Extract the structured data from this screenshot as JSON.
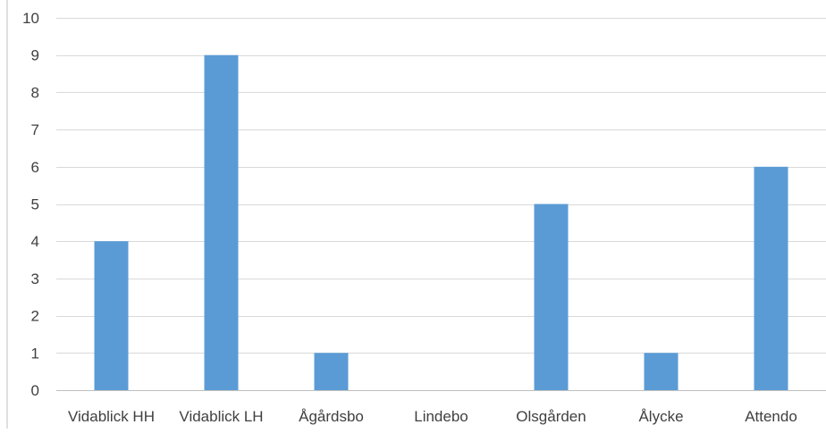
{
  "chart_data": {
    "type": "bar",
    "title": "",
    "xlabel": "",
    "ylabel": "",
    "categories": [
      "Vidablick HH",
      "Vidablick LH",
      "Ågårdsbo",
      "Lindebo",
      "Olsgården",
      "Ålycke",
      "Attendo"
    ],
    "values": [
      4,
      9,
      1,
      0,
      5,
      1,
      6
    ],
    "ylim": [
      0,
      10
    ],
    "yticks": [
      0,
      1,
      2,
      3,
      4,
      5,
      6,
      7,
      8,
      9,
      10
    ],
    "grid": true,
    "legend": "none",
    "colors": {
      "bar": "#5B9BD5",
      "grid": "#D9D9D9",
      "axis": "#BFBFBF",
      "text": "#404040"
    }
  }
}
